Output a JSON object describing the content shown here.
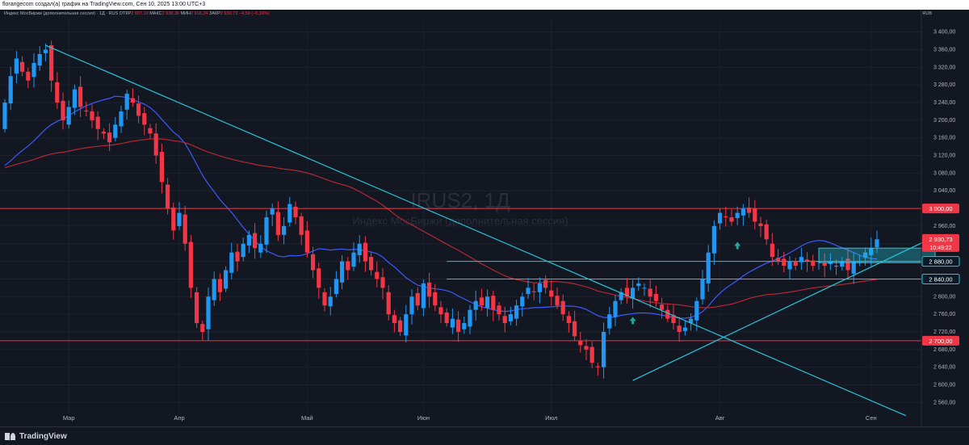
{
  "header": {
    "text": "florangecom создал(а) график на TradingView.com, Сен 10, 2025 13:00 UTC+3"
  },
  "symbol_bar": {
    "name": "Индекс МосБиржи (дополнительная сессия) · 1Д · RUS",
    "open_label": "ОТКР",
    "open": "2 937,10",
    "high_label": "МАКС",
    "high": "2 938,36",
    "low_label": "МИН",
    "low": "2 916,24",
    "close_label": "ЗАКР",
    "close": "2 930,73",
    "change": "−4,59 (−0,16%)"
  },
  "currency": "RUB",
  "watermark": {
    "ticker": "IRUS2, 1Д",
    "name": "Индекс МосБиржи (дополнительная сессия)"
  },
  "footer": {
    "brand": "TradingView"
  },
  "colors": {
    "up": "#2196f3",
    "down": "#f23645",
    "bg": "#131722",
    "grid": "#1e222d",
    "trend": "#26c6da",
    "ma_fast": "#3d5afe",
    "ma_slow": "#b22833",
    "level": "#f23645",
    "arrow": "#26a69a"
  },
  "chart_data": {
    "type": "candlestick",
    "y_ticks": [
      2560,
      2600,
      2640,
      2680,
      2720,
      2760,
      2800,
      2840,
      2880,
      2920,
      2960,
      3000,
      3040,
      3080,
      3120,
      3160,
      3200,
      3240,
      3280,
      3320,
      3360,
      3400
    ],
    "y_tick_labels": [
      "2 560,00",
      "2 600,00",
      "2 640,00",
      "2 680,00",
      "2 720,00",
      "2 760,00",
      "2 800,00",
      "2 840,00",
      "2 880,00",
      "2 920,00",
      "2 960,00",
      "3 000,00",
      "3 040,00",
      "3 080,00",
      "3 120,00",
      "3 160,00",
      "3 200,00",
      "3 240,00",
      "3 280,00",
      "3 320,00",
      "3 360,00",
      "3 400,00"
    ],
    "x_labels": [
      {
        "index": 11,
        "label": "Мар"
      },
      {
        "index": 30,
        "label": "Апр"
      },
      {
        "index": 52,
        "label": "Май"
      },
      {
        "index": 72,
        "label": "Июн"
      },
      {
        "index": 94,
        "label": "Июл"
      },
      {
        "index": 123,
        "label": "Авг"
      },
      {
        "index": 149,
        "label": "Сен"
      }
    ],
    "closes": [
      3240,
      3300,
      3340,
      3310,
      3290,
      3330,
      3350,
      3360,
      3290,
      3240,
      3200,
      3230,
      3270,
      3230,
      3220,
      3200,
      3180,
      3170,
      3150,
      3190,
      3220,
      3260,
      3240,
      3210,
      3190,
      3170,
      3120,
      3060,
      3000,
      2950,
      2990,
      2920,
      2820,
      2740,
      2720,
      2800,
      2840,
      2810,
      2860,
      2900,
      2880,
      2920,
      2940,
      2910,
      2920,
      2980,
      3000,
      2940,
      2960,
      3010,
      2980,
      2940,
      2900,
      2860,
      2820,
      2780,
      2800,
      2840,
      2880,
      2860,
      2900,
      2920,
      2880,
      2860,
      2840,
      2820,
      2760,
      2740,
      2720,
      2760,
      2800,
      2780,
      2830,
      2800,
      2780,
      2760,
      2740,
      2750,
      2720,
      2740,
      2770,
      2790,
      2780,
      2800,
      2770,
      2760,
      2740,
      2760,
      2780,
      2800,
      2820,
      2810,
      2830,
      2820,
      2800,
      2780,
      2760,
      2740,
      2710,
      2690,
      2680,
      2650,
      2640,
      2720,
      2760,
      2790,
      2810,
      2800,
      2820,
      2830,
      2820,
      2800,
      2790,
      2770,
      2750,
      2740,
      2720,
      2730,
      2750,
      2790,
      2840,
      2900,
      2960,
      2990,
      2980,
      2970,
      2990,
      3000,
      2990,
      2970,
      2960,
      2930,
      2890,
      2880,
      2870,
      2880,
      2870,
      2890,
      2880,
      2870,
      2880,
      2870,
      2880,
      2870,
      2880,
      2860,
      2880,
      2880,
      2900,
      2910,
      2930
    ],
    "levels": [
      3000,
      2700,
      2880,
      2840
    ],
    "level_labels": [
      "3 000,00",
      "2 700,00",
      "2 880,00",
      "2 840,00"
    ],
    "last_price": "2 930,73",
    "last_price_value": 2930.73,
    "countdown": "10:49:22",
    "trendlines": [
      {
        "x1": 7,
        "y1": 3370,
        "x2": 155,
        "y2": 2530
      },
      {
        "x1": 108,
        "y1": 2610,
        "x2": 159,
        "y2": 2930
      }
    ],
    "range_box": {
      "x1": 140,
      "x2": 160,
      "y1": 2877,
      "y2": 2910
    },
    "arrows": [
      108,
      126,
      152
    ]
  }
}
